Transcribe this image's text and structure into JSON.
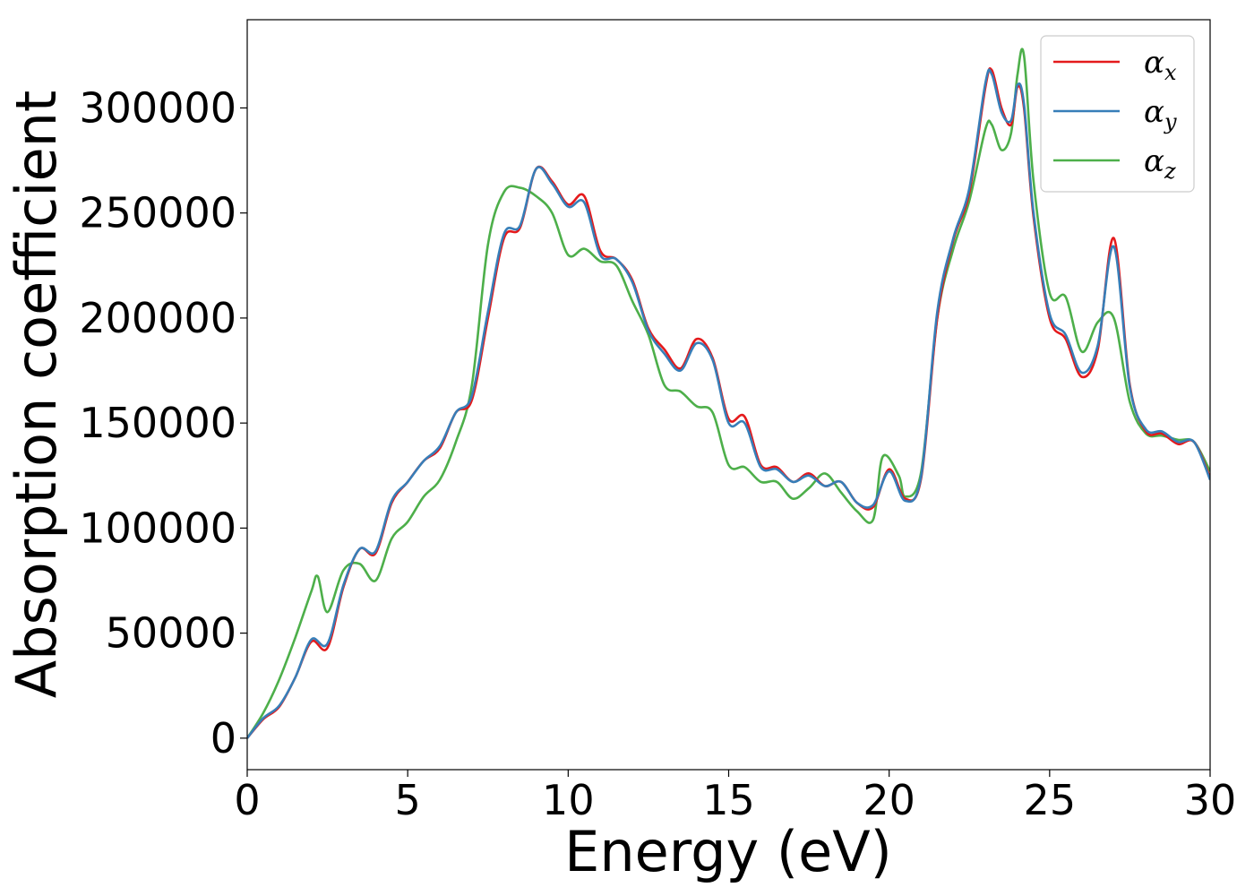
{
  "chart_data": {
    "type": "line",
    "title": "",
    "xlabel": "Energy (eV)",
    "ylabel": "Absorption coefficient",
    "xlim": [
      0,
      30
    ],
    "ylim": [
      -15000,
      342000
    ],
    "xticks": [
      0,
      5,
      10,
      15,
      20,
      25,
      30
    ],
    "yticks": [
      0,
      50000,
      100000,
      150000,
      200000,
      250000,
      300000
    ],
    "grid": false,
    "legend_position": "top-right",
    "series": [
      {
        "name": "α",
        "subscript": "x",
        "color": "#e41a1c",
        "x": [
          0,
          0.5,
          1,
          1.5,
          2,
          2.5,
          3,
          3.5,
          4,
          4.5,
          5,
          5.5,
          6,
          6.5,
          7,
          7.5,
          8,
          8.5,
          9,
          9.5,
          10,
          10.5,
          11,
          11.5,
          12,
          12.5,
          13,
          13.5,
          14,
          14.5,
          15,
          15.5,
          16,
          16.5,
          17,
          17.5,
          18,
          18.5,
          19,
          19.5,
          20,
          20.5,
          21,
          21.5,
          22,
          22.5,
          23,
          23.2,
          23.5,
          23.8,
          24,
          24.2,
          24.5,
          25,
          25.5,
          26,
          26.5,
          27,
          27.5,
          28,
          28.5,
          29,
          29.5,
          30
        ],
        "y": [
          0,
          9000,
          15000,
          29000,
          46000,
          43000,
          72000,
          90000,
          88000,
          112000,
          122000,
          132000,
          138000,
          155000,
          161000,
          200000,
          238000,
          243000,
          271000,
          265000,
          254000,
          258000,
          232000,
          228000,
          218000,
          195000,
          185000,
          176000,
          190000,
          181000,
          152000,
          153000,
          130000,
          129000,
          122000,
          126000,
          120000,
          122000,
          112000,
          110000,
          128000,
          114000,
          124000,
          200000,
          237000,
          260000,
          310000,
          318000,
          300000,
          292000,
          310000,
          300000,
          248000,
          200000,
          190000,
          172000,
          185000,
          238000,
          168000,
          146000,
          145000,
          140000,
          141000,
          124000
        ]
      },
      {
        "name": "α",
        "subscript": "y",
        "color": "#377eb8",
        "x": [
          0,
          0.5,
          1,
          1.5,
          2,
          2.5,
          3,
          3.5,
          4,
          4.5,
          5,
          5.5,
          6,
          6.5,
          7,
          7.5,
          8,
          8.5,
          9,
          9.5,
          10,
          10.5,
          11,
          11.5,
          12,
          12.5,
          13,
          13.5,
          14,
          14.5,
          15,
          15.5,
          16,
          16.5,
          17,
          17.5,
          18,
          18.5,
          19,
          19.5,
          20,
          20.5,
          21,
          21.5,
          22,
          22.5,
          23,
          23.2,
          23.5,
          23.8,
          24,
          24.2,
          24.5,
          25,
          25.5,
          26,
          26.5,
          27,
          27.5,
          28,
          28.5,
          29,
          29.5,
          30
        ],
        "y": [
          0,
          9500,
          15500,
          29000,
          47000,
          45000,
          73000,
          90000,
          89000,
          113000,
          122000,
          132000,
          139000,
          155000,
          163000,
          203000,
          240000,
          244000,
          271000,
          264000,
          253000,
          255000,
          230000,
          228000,
          217000,
          194000,
          183000,
          175000,
          188000,
          180000,
          150000,
          150000,
          129000,
          128000,
          122000,
          125000,
          120000,
          122000,
          112000,
          111000,
          127000,
          113000,
          125000,
          203000,
          238000,
          262000,
          312000,
          316000,
          298000,
          294000,
          311000,
          302000,
          250000,
          202000,
          192000,
          174000,
          187000,
          234000,
          167000,
          147000,
          146000,
          141000,
          141000,
          123000
        ]
      },
      {
        "name": "α",
        "subscript": "z",
        "color": "#4daf4a",
        "x": [
          0,
          0.5,
          1,
          1.5,
          2,
          2.2,
          2.5,
          3,
          3.5,
          4,
          4.5,
          5,
          5.5,
          6,
          6.5,
          7,
          7.5,
          8,
          8.5,
          9,
          9.5,
          10,
          10.5,
          11,
          11.5,
          12,
          12.5,
          13,
          13.5,
          14,
          14.5,
          15,
          15.5,
          16,
          16.5,
          17,
          17.5,
          18,
          18.5,
          19,
          19.5,
          19.8,
          20.3,
          20.5,
          21,
          21.5,
          22,
          22.5,
          23,
          23.2,
          23.5,
          23.8,
          24,
          24.2,
          24.5,
          25,
          25.5,
          26,
          26.5,
          27,
          27.5,
          28,
          28.5,
          29,
          29.5,
          30
        ],
        "y": [
          0,
          12000,
          28000,
          48000,
          70000,
          77000,
          60000,
          80000,
          83000,
          75000,
          95000,
          103000,
          115000,
          123000,
          141000,
          168000,
          235000,
          260000,
          262000,
          258000,
          250000,
          230000,
          233000,
          227000,
          225000,
          208000,
          192000,
          168000,
          165000,
          158000,
          155000,
          130000,
          129000,
          122000,
          122000,
          114000,
          119000,
          126000,
          117000,
          108000,
          104000,
          134000,
          125000,
          115000,
          127000,
          200000,
          233000,
          256000,
          290000,
          292000,
          280000,
          288000,
          316000,
          325000,
          265000,
          212000,
          210000,
          184000,
          198000,
          200000,
          160000,
          145000,
          144000,
          142000,
          141000,
          127000
        ]
      }
    ]
  }
}
